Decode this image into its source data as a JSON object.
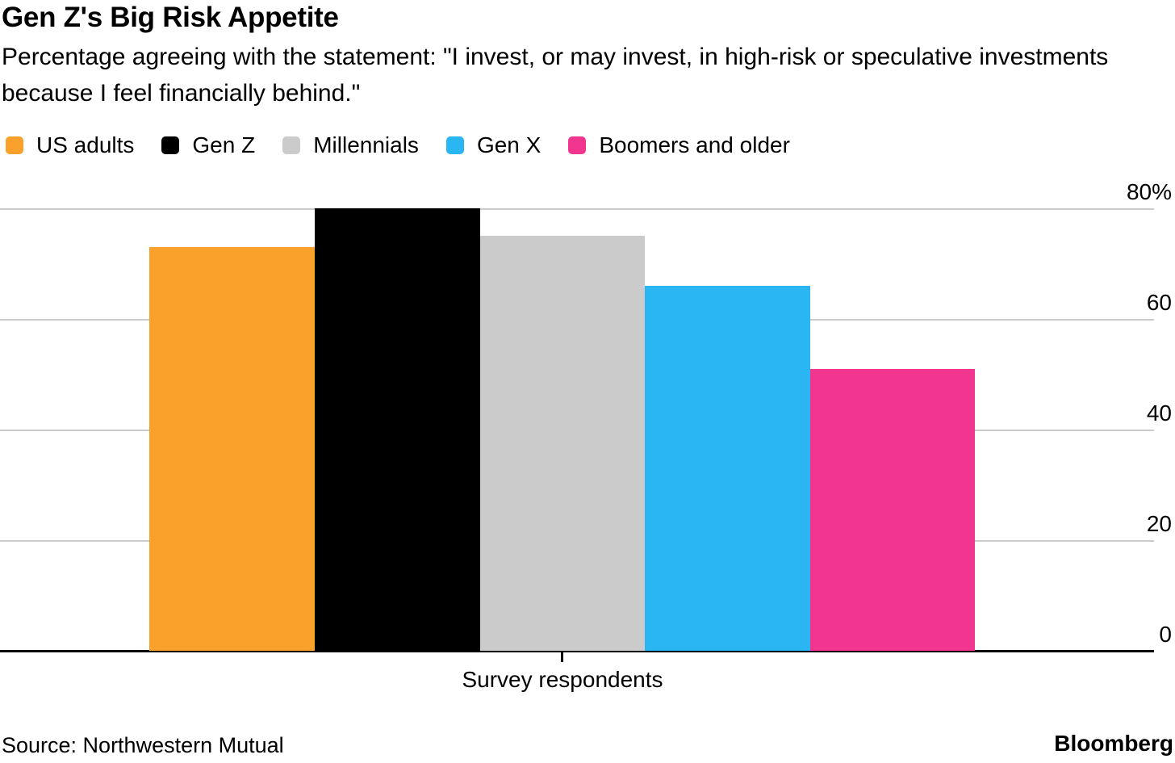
{
  "header": {
    "title": "Gen Z's Big Risk Appetite",
    "subtitle": "Percentage agreeing with the statement: \"I invest, or may invest, in high-risk or speculative investments because I feel financially behind.\""
  },
  "chart_data": {
    "type": "bar",
    "title": "Gen Z's Big Risk Appetite",
    "subtitle": "Percentage agreeing with the statement: \"I invest, or may invest, in high-risk or speculative investments because I feel financially behind.\"",
    "categories": [
      "Survey respondents"
    ],
    "series": [
      {
        "name": "US adults",
        "value": 73,
        "color": "#FAA12B"
      },
      {
        "name": "Gen Z",
        "value": 80,
        "color": "#000000"
      },
      {
        "name": "Millennials",
        "value": 75,
        "color": "#CBCBCB"
      },
      {
        "name": "Gen X",
        "value": 66,
        "color": "#29B6F2"
      },
      {
        "name": "Boomers and older",
        "value": 51,
        "color": "#F2368F"
      }
    ],
    "xlabel": "Survey respondents",
    "ylabel": "",
    "ylim": [
      0,
      80
    ],
    "yticks": [
      {
        "value": 80,
        "label": "80%"
      },
      {
        "value": 60,
        "label": "60"
      },
      {
        "value": 40,
        "label": "40"
      },
      {
        "value": 20,
        "label": "20"
      },
      {
        "value": 0,
        "label": "0"
      }
    ],
    "grid": "horizontal",
    "legend_position": "top",
    "colors": {
      "gridline": "#CBCBCB",
      "axis": "#000000",
      "background": "#FFFFFF"
    }
  },
  "footer": {
    "source": "Source: Northwestern Mutual",
    "brand": "Bloomberg"
  }
}
